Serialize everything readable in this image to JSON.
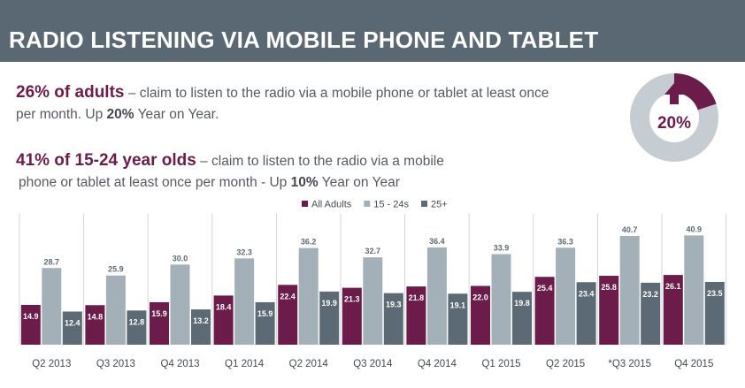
{
  "header": {
    "title": "RADIO LISTENING VIA MOBILE PHONE AND TABLET"
  },
  "stats": {
    "adults": {
      "highlight": "26% of adults",
      "text_a": " – claim to listen to the radio via a mobile phone or tablet at least once",
      "text_b": "per month. Up ",
      "growth": "20%",
      "text_c": " Year on Year."
    },
    "youth": {
      "highlight": "41% of 15-24 year olds",
      "text_a": " – claim to listen to the radio via a mobile",
      "text_b": "phone or tablet at least once per month -  Up ",
      "growth": "10%",
      "text_c": " Year on Year"
    }
  },
  "badge": {
    "label": "20%",
    "fill_fraction": 0.2
  },
  "colors": {
    "header": "#5a6873",
    "all_adults": "#6b1c4a",
    "age_15_24": "#a3b0b8",
    "age_25_plus": "#5b6a74",
    "donut_track": "#c6cdd2",
    "divider": "#cfd5d9"
  },
  "chart_data": {
    "type": "bar",
    "title": "",
    "xlabel": "",
    "ylabel": "",
    "ylim": [
      0,
      45
    ],
    "grid": false,
    "legend": "top-center",
    "categories": [
      "Q2 2013",
      "Q3 2013",
      "Q4 2013",
      "Q1 2014",
      "Q2 2014",
      "Q3 2014",
      "Q4 2014",
      "Q1 2015",
      "Q2 2015",
      "*Q3 2015",
      "Q4 2015"
    ],
    "series": [
      {
        "name": "All Adults",
        "color": "#6b1c4a",
        "values": [
          14.9,
          14.8,
          15.9,
          18.4,
          22.4,
          21.3,
          21.8,
          22.0,
          25.4,
          25.8,
          26.1
        ]
      },
      {
        "name": "15 - 24s",
        "color": "#a3b0b8",
        "values": [
          28.7,
          25.9,
          30.0,
          32.3,
          36.2,
          32.7,
          36.4,
          33.9,
          36.3,
          40.7,
          40.9
        ]
      },
      {
        "name": "25+",
        "color": "#5b6a74",
        "values": [
          12.4,
          12.8,
          13.2,
          15.9,
          19.9,
          19.3,
          19.1,
          19.8,
          23.4,
          23.2,
          23.5
        ]
      }
    ]
  }
}
